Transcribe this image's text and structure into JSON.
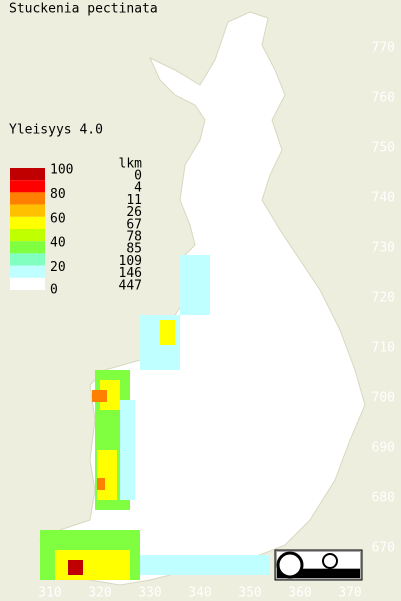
{
  "title": "Stuckenia pectinata",
  "frequency": "Yleisyys  4.0",
  "legend": {
    "header": "lkm",
    "percent_labels": [
      100,
      80,
      60,
      40,
      20,
      0
    ],
    "counts": [
      0,
      4,
      11,
      26,
      67,
      78,
      85,
      109,
      146,
      447
    ],
    "colors": [
      "#c00000",
      "#ff0000",
      "#ff8000",
      "#ffc000",
      "#ffff00",
      "#c0ff00",
      "#80ff40",
      "#80ffc0",
      "#c0ffff",
      "#ffffff"
    ]
  },
  "grid": {
    "northing": [
      770,
      760,
      750,
      740,
      730,
      720,
      710,
      700,
      690,
      680,
      670
    ],
    "easting": [
      310,
      320,
      330,
      340,
      350,
      360,
      370
    ]
  }
}
